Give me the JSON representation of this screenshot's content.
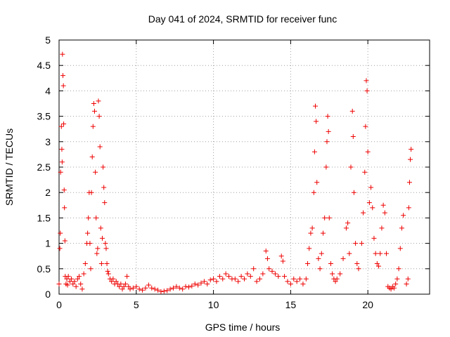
{
  "chart_data": {
    "type": "scatter",
    "title": "Day 041 of 2024, SRMTID for receiver func",
    "xlabel": "GPS time / hours",
    "ylabel": "SRMTID / TECUs",
    "xlim": [
      0,
      24
    ],
    "ylim": [
      0,
      5
    ],
    "x_ticks": [
      0,
      5,
      10,
      15,
      20
    ],
    "x_tick_labels": [
      "0",
      "5",
      "10",
      "15",
      "20"
    ],
    "y_ticks": [
      0,
      0.5,
      1,
      1.5,
      2,
      2.5,
      3,
      3.5,
      4,
      4.5,
      5
    ],
    "y_tick_labels": [
      "0",
      "0.5",
      "1",
      "1.5",
      "2",
      "2.5",
      "3",
      "3.5",
      "4",
      "4.5",
      "5"
    ],
    "grid": true,
    "marker": "plus",
    "series": [
      {
        "name": "SRMTID",
        "color": "#ee0000",
        "points": [
          [
            0.0,
            0.2
          ],
          [
            0.05,
            0.9
          ],
          [
            0.08,
            1.2
          ],
          [
            0.1,
            2.4
          ],
          [
            0.15,
            3.3
          ],
          [
            0.18,
            2.85
          ],
          [
            0.2,
            2.6
          ],
          [
            0.22,
            4.72
          ],
          [
            0.25,
            4.3
          ],
          [
            0.28,
            4.1
          ],
          [
            0.3,
            3.35
          ],
          [
            0.33,
            2.05
          ],
          [
            0.35,
            1.7
          ],
          [
            0.38,
            1.05
          ],
          [
            0.4,
            0.35
          ],
          [
            0.45,
            0.2
          ],
          [
            0.5,
            0.3
          ],
          [
            0.55,
            0.18
          ],
          [
            0.6,
            0.35
          ],
          [
            0.7,
            0.25
          ],
          [
            0.8,
            0.3
          ],
          [
            0.9,
            0.2
          ],
          [
            1.0,
            0.25
          ],
          [
            1.1,
            0.15
          ],
          [
            1.2,
            0.3
          ],
          [
            1.3,
            0.35
          ],
          [
            1.4,
            0.2
          ],
          [
            1.5,
            0.1
          ],
          [
            1.6,
            0.4
          ],
          [
            1.7,
            0.6
          ],
          [
            1.8,
            1.0
          ],
          [
            1.85,
            1.2
          ],
          [
            1.9,
            1.5
          ],
          [
            1.95,
            2.0
          ],
          [
            2.0,
            1.0
          ],
          [
            2.05,
            0.5
          ],
          [
            2.1,
            2.0
          ],
          [
            2.15,
            2.7
          ],
          [
            2.2,
            3.3
          ],
          [
            2.25,
            3.75
          ],
          [
            2.3,
            3.6
          ],
          [
            2.35,
            2.4
          ],
          [
            2.4,
            1.5
          ],
          [
            2.45,
            0.8
          ],
          [
            2.5,
            0.9
          ],
          [
            2.55,
            3.8
          ],
          [
            2.6,
            3.5
          ],
          [
            2.65,
            2.9
          ],
          [
            2.7,
            1.3
          ],
          [
            2.75,
            0.6
          ],
          [
            2.8,
            1.1
          ],
          [
            2.85,
            2.5
          ],
          [
            2.9,
            2.1
          ],
          [
            2.95,
            1.8
          ],
          [
            3.0,
            1.0
          ],
          [
            3.05,
            0.9
          ],
          [
            3.1,
            0.6
          ],
          [
            3.15,
            0.45
          ],
          [
            3.2,
            0.4
          ],
          [
            3.3,
            0.3
          ],
          [
            3.4,
            0.25
          ],
          [
            3.5,
            0.3
          ],
          [
            3.6,
            0.2
          ],
          [
            3.7,
            0.25
          ],
          [
            3.8,
            0.2
          ],
          [
            3.9,
            0.15
          ],
          [
            4.0,
            0.2
          ],
          [
            4.1,
            0.1
          ],
          [
            4.2,
            0.15
          ],
          [
            4.3,
            0.2
          ],
          [
            4.4,
            0.35
          ],
          [
            4.5,
            0.15
          ],
          [
            4.6,
            0.1
          ],
          [
            4.8,
            0.12
          ],
          [
            5.0,
            0.15
          ],
          [
            5.2,
            0.1
          ],
          [
            5.4,
            0.08
          ],
          [
            5.6,
            0.12
          ],
          [
            5.8,
            0.18
          ],
          [
            6.0,
            0.12
          ],
          [
            6.2,
            0.1
          ],
          [
            6.4,
            0.08
          ],
          [
            6.6,
            0.05
          ],
          [
            6.8,
            0.06
          ],
          [
            7.0,
            0.07
          ],
          [
            7.2,
            0.1
          ],
          [
            7.4,
            0.12
          ],
          [
            7.6,
            0.15
          ],
          [
            7.8,
            0.12
          ],
          [
            8.0,
            0.1
          ],
          [
            8.2,
            0.15
          ],
          [
            8.4,
            0.14
          ],
          [
            8.6,
            0.16
          ],
          [
            8.8,
            0.2
          ],
          [
            9.0,
            0.18
          ],
          [
            9.2,
            0.22
          ],
          [
            9.4,
            0.25
          ],
          [
            9.6,
            0.2
          ],
          [
            9.8,
            0.28
          ],
          [
            10.0,
            0.3
          ],
          [
            10.2,
            0.25
          ],
          [
            10.4,
            0.35
          ],
          [
            10.6,
            0.3
          ],
          [
            10.8,
            0.4
          ],
          [
            11.0,
            0.35
          ],
          [
            11.2,
            0.3
          ],
          [
            11.4,
            0.3
          ],
          [
            11.6,
            0.25
          ],
          [
            11.8,
            0.35
          ],
          [
            12.0,
            0.3
          ],
          [
            12.2,
            0.4
          ],
          [
            12.4,
            0.35
          ],
          [
            12.6,
            0.5
          ],
          [
            12.8,
            0.25
          ],
          [
            13.0,
            0.3
          ],
          [
            13.2,
            0.4
          ],
          [
            13.4,
            0.85
          ],
          [
            13.5,
            0.7
          ],
          [
            13.6,
            0.5
          ],
          [
            13.8,
            0.45
          ],
          [
            14.0,
            0.4
          ],
          [
            14.2,
            0.35
          ],
          [
            14.4,
            0.75
          ],
          [
            14.5,
            0.65
          ],
          [
            14.6,
            0.35
          ],
          [
            14.8,
            0.25
          ],
          [
            15.0,
            0.2
          ],
          [
            15.2,
            0.3
          ],
          [
            15.4,
            0.25
          ],
          [
            15.6,
            0.3
          ],
          [
            15.8,
            0.2
          ],
          [
            16.0,
            0.3
          ],
          [
            16.1,
            0.6
          ],
          [
            16.2,
            0.9
          ],
          [
            16.3,
            1.2
          ],
          [
            16.4,
            1.3
          ],
          [
            16.5,
            2.0
          ],
          [
            16.55,
            2.8
          ],
          [
            16.6,
            3.7
          ],
          [
            16.65,
            3.4
          ],
          [
            16.7,
            2.2
          ],
          [
            16.8,
            0.7
          ],
          [
            16.9,
            0.5
          ],
          [
            17.0,
            0.8
          ],
          [
            17.1,
            1.2
          ],
          [
            17.2,
            1.5
          ],
          [
            17.3,
            2.5
          ],
          [
            17.35,
            3.0
          ],
          [
            17.4,
            3.5
          ],
          [
            17.45,
            3.2
          ],
          [
            17.5,
            1.5
          ],
          [
            17.6,
            0.6
          ],
          [
            17.7,
            0.4
          ],
          [
            17.8,
            0.3
          ],
          [
            17.9,
            0.25
          ],
          [
            18.0,
            0.3
          ],
          [
            18.2,
            0.4
          ],
          [
            18.4,
            0.7
          ],
          [
            18.6,
            1.3
          ],
          [
            18.7,
            1.4
          ],
          [
            18.8,
            0.8
          ],
          [
            18.9,
            2.5
          ],
          [
            19.0,
            3.6
          ],
          [
            19.05,
            3.1
          ],
          [
            19.1,
            2.0
          ],
          [
            19.2,
            1.0
          ],
          [
            19.3,
            0.6
          ],
          [
            19.4,
            0.5
          ],
          [
            19.6,
            1.0
          ],
          [
            19.7,
            1.6
          ],
          [
            19.8,
            2.4
          ],
          [
            19.85,
            3.3
          ],
          [
            19.9,
            4.2
          ],
          [
            19.95,
            4.0
          ],
          [
            20.0,
            2.8
          ],
          [
            20.1,
            1.8
          ],
          [
            20.2,
            2.1
          ],
          [
            20.3,
            1.7
          ],
          [
            20.4,
            1.1
          ],
          [
            20.5,
            0.8
          ],
          [
            20.6,
            0.6
          ],
          [
            20.7,
            0.55
          ],
          [
            20.8,
            0.8
          ],
          [
            20.9,
            1.3
          ],
          [
            21.0,
            1.75
          ],
          [
            21.1,
            1.6
          ],
          [
            21.2,
            0.8
          ],
          [
            21.3,
            0.15
          ],
          [
            21.4,
            0.12
          ],
          [
            21.5,
            0.1
          ],
          [
            21.6,
            0.15
          ],
          [
            21.7,
            0.12
          ],
          [
            21.8,
            0.2
          ],
          [
            21.9,
            0.3
          ],
          [
            22.0,
            0.5
          ],
          [
            22.1,
            0.9
          ],
          [
            22.2,
            1.3
          ],
          [
            22.3,
            1.55
          ],
          [
            22.5,
            0.2
          ],
          [
            22.6,
            0.3
          ],
          [
            22.65,
            1.7
          ],
          [
            22.7,
            2.2
          ],
          [
            22.75,
            2.65
          ],
          [
            22.8,
            2.85
          ]
        ]
      }
    ]
  }
}
